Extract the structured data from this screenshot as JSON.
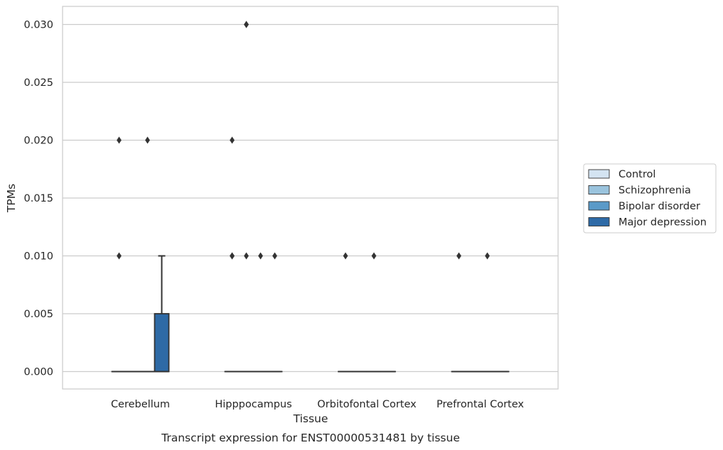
{
  "chart_data": {
    "type": "box",
    "title": "",
    "xlabel": "Tissue",
    "ylabel": "TPMs",
    "caption": "Transcript expression for ENST00000531481 by tissue",
    "ylim": [
      -0.0015,
      0.0315
    ],
    "yticks": [
      0.0,
      0.005,
      0.01,
      0.015,
      0.02,
      0.025,
      0.03
    ],
    "ytick_labels": [
      "0.000",
      "0.005",
      "0.010",
      "0.015",
      "0.020",
      "0.025",
      "0.030"
    ],
    "grid": "horizontal",
    "legend_position": "right",
    "categories": [
      "Cerebellum",
      "Hipppocampus",
      "Orbitofontal Cortex",
      "Prefrontal Cortex"
    ],
    "series": [
      {
        "name": "Control",
        "color": "#d4e4f2",
        "boxes": [
          {
            "q1": 0.0,
            "median": 0.0,
            "q3": 0.0,
            "whisker_low": 0.0,
            "whisker_high": 0.0,
            "outliers": [
              0.01,
              0.02
            ]
          },
          {
            "q1": 0.0,
            "median": 0.0,
            "q3": 0.0,
            "whisker_low": 0.0,
            "whisker_high": 0.0,
            "outliers": [
              0.01,
              0.01,
              0.02
            ]
          },
          {
            "q1": 0.0,
            "median": 0.0,
            "q3": 0.0,
            "whisker_low": 0.0,
            "whisker_high": 0.0,
            "outliers": [
              0.01
            ]
          },
          {
            "q1": 0.0,
            "median": 0.0,
            "q3": 0.0,
            "whisker_low": 0.0,
            "whisker_high": 0.0,
            "outliers": [
              0.01
            ]
          }
        ]
      },
      {
        "name": "Schizophrenia",
        "color": "#9ac3dd",
        "boxes": [
          {
            "q1": 0.0,
            "median": 0.0,
            "q3": 0.0,
            "whisker_low": 0.0,
            "whisker_high": 0.0,
            "outliers": []
          },
          {
            "q1": 0.0,
            "median": 0.0,
            "q3": 0.0,
            "whisker_low": 0.0,
            "whisker_high": 0.0,
            "outliers": [
              0.01,
              0.03,
              0.03
            ]
          },
          {
            "q1": 0.0,
            "median": 0.0,
            "q3": 0.0,
            "whisker_low": 0.0,
            "whisker_high": 0.0,
            "outliers": []
          },
          {
            "q1": 0.0,
            "median": 0.0,
            "q3": 0.0,
            "whisker_low": 0.0,
            "whisker_high": 0.0,
            "outliers": []
          }
        ]
      },
      {
        "name": "Bipolar disorder",
        "color": "#5a9ac8",
        "boxes": [
          {
            "q1": 0.0,
            "median": 0.0,
            "q3": 0.0,
            "whisker_low": 0.0,
            "whisker_high": 0.0,
            "outliers": [
              0.02
            ]
          },
          {
            "q1": 0.0,
            "median": 0.0,
            "q3": 0.0,
            "whisker_low": 0.0,
            "whisker_high": 0.0,
            "outliers": [
              0.01
            ]
          },
          {
            "q1": 0.0,
            "median": 0.0,
            "q3": 0.0,
            "whisker_low": 0.0,
            "whisker_high": 0.0,
            "outliers": [
              0.01
            ]
          },
          {
            "q1": 0.0,
            "median": 0.0,
            "q3": 0.0,
            "whisker_low": 0.0,
            "whisker_high": 0.0,
            "outliers": [
              0.01
            ]
          }
        ]
      },
      {
        "name": "Major depression",
        "color": "#2e6aa6",
        "boxes": [
          {
            "q1": 0.0,
            "median": 0.0,
            "q3": 0.005,
            "whisker_low": 0.0,
            "whisker_high": 0.01,
            "outliers": []
          },
          {
            "q1": 0.0,
            "median": 0.0,
            "q3": 0.0,
            "whisker_low": 0.0,
            "whisker_high": 0.0,
            "outliers": [
              0.01
            ]
          },
          {
            "q1": 0.0,
            "median": 0.0,
            "q3": 0.0,
            "whisker_low": 0.0,
            "whisker_high": 0.0,
            "outliers": []
          },
          {
            "q1": 0.0,
            "median": 0.0,
            "q3": 0.0,
            "whisker_low": 0.0,
            "whisker_high": 0.0,
            "outliers": []
          }
        ]
      }
    ]
  }
}
